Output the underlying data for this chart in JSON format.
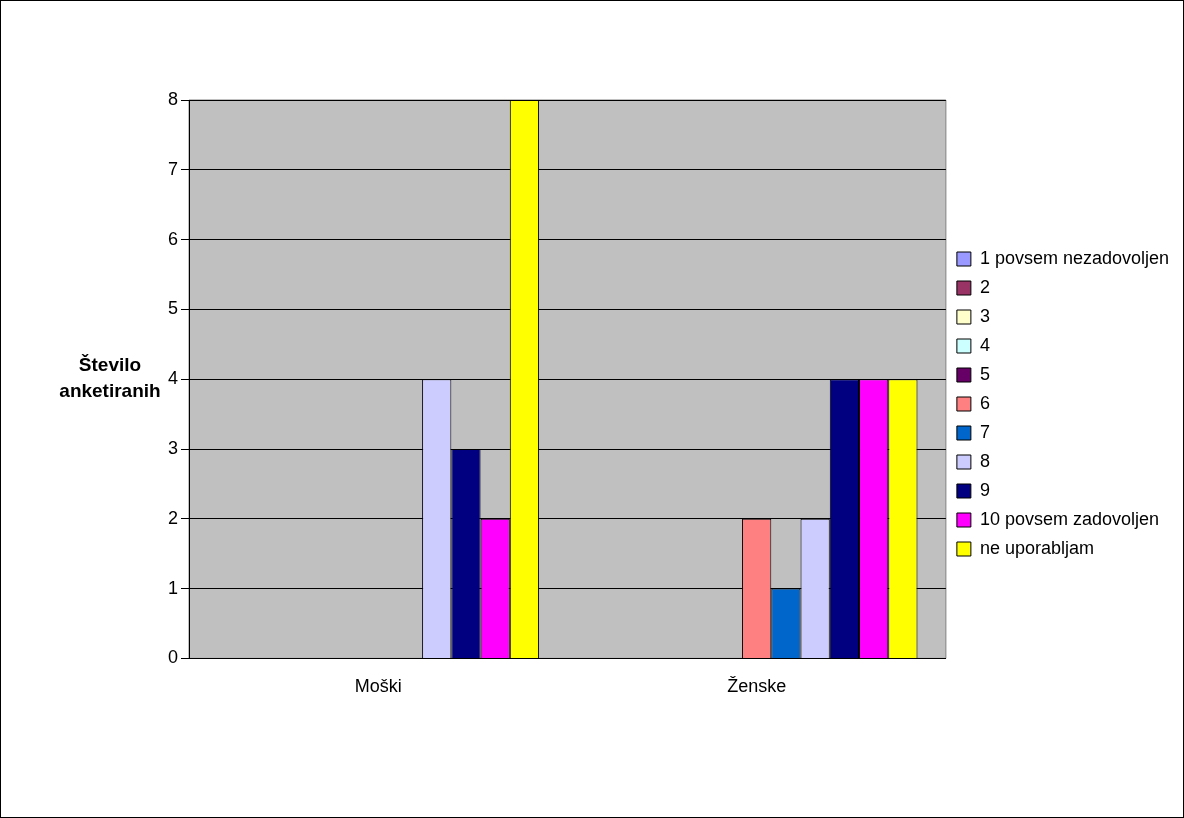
{
  "chart_data": {
    "type": "bar",
    "ylabel": "Število anketiranih",
    "categories": [
      "Moški",
      "Ženske"
    ],
    "series": [
      {
        "name": "1 povsem nezadovoljen",
        "color": "#9999ff",
        "values": [
          0,
          0
        ]
      },
      {
        "name": "2",
        "color": "#993366",
        "values": [
          0,
          0
        ]
      },
      {
        "name": "3",
        "color": "#ffffcc",
        "values": [
          0,
          0
        ]
      },
      {
        "name": "4",
        "color": "#ccffff",
        "values": [
          0,
          0
        ]
      },
      {
        "name": "5",
        "color": "#660066",
        "values": [
          0,
          0
        ]
      },
      {
        "name": "6",
        "color": "#ff8080",
        "values": [
          0,
          2
        ]
      },
      {
        "name": "7",
        "color": "#0066cc",
        "values": [
          0,
          1
        ]
      },
      {
        "name": "8",
        "color": "#ccccff",
        "values": [
          4,
          2
        ]
      },
      {
        "name": "9",
        "color": "#000080",
        "values": [
          3,
          4
        ]
      },
      {
        "name": "10 povsem zadovoljen",
        "color": "#ff00ff",
        "values": [
          2,
          4
        ]
      },
      {
        "name": "ne uporabljam",
        "color": "#ffff00",
        "values": [
          8,
          4
        ]
      }
    ],
    "ylim": [
      0,
      8
    ],
    "yticks": [
      0,
      1,
      2,
      3,
      4,
      5,
      6,
      7,
      8
    ],
    "grid": "y",
    "legend": "right"
  }
}
